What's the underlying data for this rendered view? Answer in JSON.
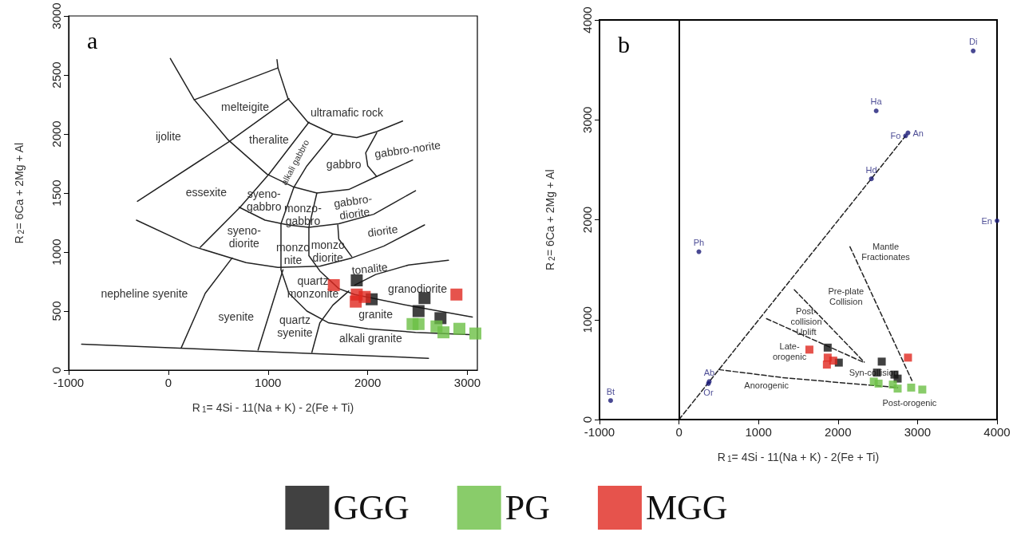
{
  "chart_data": [
    {
      "type": "scatter",
      "title": "a",
      "xlabel": "R$_{1}$= 4Si - 11(Na + K) - 2(Fe + Ti)",
      "ylabel": "R$_{2}$= 6Ca + 2Mg + Al",
      "xlim": [
        -1000,
        3100
      ],
      "ylim": [
        0,
        3000
      ],
      "xticks": [
        -1000,
        0,
        1000,
        2000,
        3000
      ],
      "yticks": [
        0,
        500,
        1000,
        1500,
        2000,
        2500,
        3000
      ],
      "grid": false,
      "legend": "bottom",
      "marker": "square",
      "series": [
        {
          "name": "GGG",
          "color": "#111111",
          "x": [
            1890,
            2040,
            2570,
            2510,
            2730
          ],
          "values": [
            760,
            600,
            610,
            500,
            440
          ]
        },
        {
          "name": "PG",
          "color": "#6cbf45",
          "x": [
            2450,
            2510,
            2690,
            2760,
            2920,
            3080
          ],
          "values": [
            390,
            390,
            370,
            320,
            350,
            310
          ]
        },
        {
          "name": "MGG",
          "color": "#e0281f",
          "x": [
            1660,
            1890,
            1880,
            1970,
            2890
          ],
          "values": [
            720,
            640,
            580,
            620,
            640
          ]
        },
        {
          "type": "line",
          "color": "#222222",
          "marker": "none",
          "x": [
            -870,
            2610
          ],
          "values": [
            220,
            100
          ]
        },
        {
          "type": "line",
          "color": "#222222",
          "marker": "none",
          "x": [
            20,
            260,
            600,
            990,
            1260,
            1490,
            1810,
            2090,
            2450
          ],
          "values": [
            2640,
            2290,
            1950,
            1660,
            1550,
            1500,
            1530,
            1640,
            1780
          ]
        },
        {
          "type": "line",
          "color": "#222222",
          "marker": "none",
          "x": [
            260,
            1100,
            1090
          ],
          "values": [
            2290,
            2560,
            2630
          ]
        },
        {
          "type": "line",
          "color": "#222222",
          "marker": "none",
          "x": [
            1100,
            1200,
            1400,
            1650,
            1890,
            2090,
            2350
          ],
          "values": [
            2560,
            2300,
            2100,
            2000,
            1970,
            2020,
            2110
          ]
        },
        {
          "type": "line",
          "color": "#222222",
          "marker": "none",
          "x": [
            1210,
            600,
            -310
          ],
          "values": [
            2300,
            1930,
            1430
          ]
        },
        {
          "type": "line",
          "color": "#222222",
          "marker": "none",
          "x": [
            1410,
            1010,
            720,
            320
          ],
          "values": [
            2100,
            1660,
            1380,
            1040
          ]
        },
        {
          "type": "line",
          "color": "#222222",
          "marker": "none",
          "x": [
            1650,
            1390,
            1260,
            1130,
            1130,
            1210,
            1390,
            1610,
            2000,
            2480,
            3020
          ],
          "values": [
            2000,
            1730,
            1550,
            1240,
            850,
            650,
            500,
            400,
            350,
            320,
            300
          ]
        },
        {
          "type": "line",
          "color": "#222222",
          "marker": "none",
          "x": [
            710,
            970,
            1200,
            1410,
            1710,
            2060,
            2480
          ],
          "values": [
            1380,
            1270,
            1230,
            1210,
            1240,
            1320,
            1520
          ]
        },
        {
          "type": "line",
          "color": "#222222",
          "marker": "none",
          "x": [
            1490,
            1410,
            1410,
            1520,
            1710,
            1870,
            2450,
            3050
          ],
          "values": [
            1500,
            1210,
            970,
            840,
            690,
            640,
            540,
            450
          ]
        },
        {
          "type": "line",
          "color": "#222222",
          "marker": "none",
          "x": [
            1700,
            1710,
            1840
          ],
          "values": [
            1230,
            1110,
            960
          ]
        },
        {
          "type": "line",
          "color": "#222222",
          "marker": "none",
          "x": [
            -320,
            240,
            780,
            1100,
            1520,
            1840,
            2160,
            2570
          ],
          "values": [
            1270,
            1050,
            910,
            870,
            880,
            950,
            1050,
            1230
          ]
        },
        {
          "type": "line",
          "color": "#222222",
          "marker": "none",
          "x": [
            1870,
            2080,
            2410,
            2810
          ],
          "values": [
            720,
            810,
            890,
            930
          ]
        },
        {
          "type": "line",
          "color": "#222222",
          "marker": "none",
          "x": [
            1810,
            1650,
            1520,
            1440
          ],
          "values": [
            670,
            550,
            400,
            150
          ]
        },
        {
          "type": "line",
          "color": "#222222",
          "marker": "none",
          "x": [
            640,
            370,
            130
          ],
          "values": [
            950,
            650,
            190
          ]
        },
        {
          "type": "line",
          "color": "#222222",
          "marker": "none",
          "x": [
            1150,
            900
          ],
          "values": [
            850,
            170
          ]
        },
        {
          "type": "line",
          "color": "#222222",
          "marker": "none",
          "x": [
            2090,
            1980,
            2000,
            2090
          ],
          "values": [
            2010,
            1840,
            1730,
            1640
          ]
        }
      ],
      "annotations": [
        "ijolite",
        "melteigite",
        "ultramafic rock",
        "theralite",
        "alkali gabbro",
        "gabbro",
        "gabbro-norite",
        "essexite",
        "syeno-\ngabbro",
        "monzo-\ngabbro",
        "gabbro-\ndiorite",
        "syeno-\ndiorite",
        "monzo\nnite",
        "monzo\ndiorite",
        "diorite",
        "tonalite",
        "quartz\nmonzonite",
        "granodiorite",
        "granite",
        "nepheline syenite",
        "syenite",
        "quartz\nsyenite",
        "alkali granite"
      ]
    },
    {
      "type": "scatter",
      "title": "b",
      "xlabel": "R$_{1}$= 4Si - 11(Na + K) - 2(Fe + Ti)",
      "ylabel": "R$_{2}$= 6Ca + 2Mg + Al",
      "xlim": [
        -1000,
        4000
      ],
      "ylim": [
        0,
        4000
      ],
      "xticks": [
        -1000,
        0,
        1000,
        2000,
        3000,
        4000
      ],
      "yticks": [
        0,
        1000,
        2000,
        3000,
        4000
      ],
      "grid": false,
      "marker": "square",
      "ref_lines": [
        {
          "axis": "x",
          "value": 0,
          "color": "#000000",
          "line_style": "solid"
        }
      ],
      "series": [
        {
          "color": "#111111",
          "x": [
            1870,
            2010,
            2550,
            2490,
            2710,
            2750
          ],
          "values": [
            720,
            570,
            580,
            470,
            450,
            410
          ]
        },
        {
          "color": "#6cbf45",
          "x": [
            2450,
            2510,
            2690,
            2750,
            2920,
            3060
          ],
          "values": [
            380,
            360,
            350,
            310,
            320,
            300
          ]
        },
        {
          "color": "#e0281f",
          "x": [
            1640,
            1870,
            1860,
            1940,
            2880
          ],
          "values": [
            700,
            620,
            550,
            590,
            620
          ]
        },
        {
          "color": "#1c1c78",
          "marker": "circle",
          "x": [
            3700,
            2480,
            2880,
            2850,
            2420,
            4000,
            250,
            380,
            370,
            -860
          ],
          "values": [
            3690,
            3090,
            2870,
            2840,
            2410,
            1990,
            1680,
            380,
            360,
            190
          ],
          "value_labels": [
            "Di",
            "Ha",
            "An",
            "Fo",
            "Hd",
            "En",
            "Ph",
            "Ab",
            "Or",
            "Bt"
          ]
        },
        {
          "type": "line",
          "color": "#222222",
          "marker": "none",
          "line_style": "dashed",
          "x": [
            0,
            2850
          ],
          "values": [
            0,
            2840
          ]
        },
        {
          "type": "line",
          "color": "#222222",
          "marker": "none",
          "line_style": "dashed",
          "x": [
            500,
            1300,
            2750
          ],
          "values": [
            500,
            420,
            320
          ]
        },
        {
          "type": "line",
          "color": "#222222",
          "marker": "none",
          "line_style": "dashed",
          "x": [
            1100,
            2330
          ],
          "values": [
            1010,
            570
          ]
        },
        {
          "type": "line",
          "color": "#222222",
          "marker": "none",
          "line_style": "dashed",
          "x": [
            1450,
            2330
          ],
          "values": [
            1300,
            575
          ]
        },
        {
          "type": "line",
          "color": "#222222",
          "marker": "none",
          "line_style": "dashed",
          "x": [
            2150,
            2930
          ],
          "values": [
            1730,
            390
          ]
        }
      ],
      "annotations": [
        "Mantle\nFractionates",
        "Pre-plate\nCollision",
        "Post-\ncollision\nUplift",
        "Late-\norogenic",
        "Syn-collision",
        "Anorogenic",
        "Post-orogenic"
      ]
    }
  ]
}
